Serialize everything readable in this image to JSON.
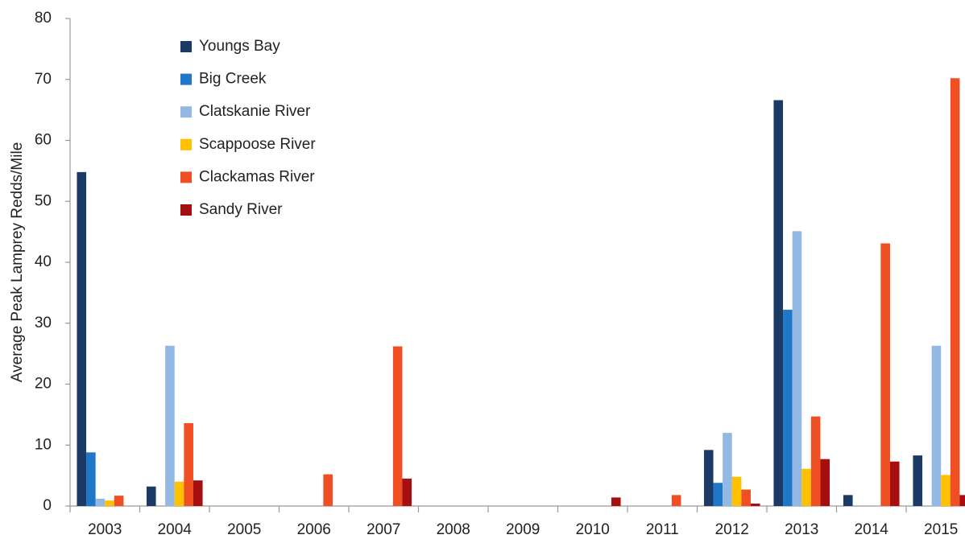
{
  "chart_data": {
    "type": "bar",
    "y_label": "Average Peak Lamprey Redds/Mile",
    "categories": [
      "2003",
      "2004",
      "2005",
      "2006",
      "2007",
      "2008",
      "2009",
      "2010",
      "2011",
      "2012",
      "2013",
      "2014",
      "2015"
    ],
    "series": [
      {
        "name": "Youngs Bay",
        "color": "#1b3a66",
        "values": [
          54.8,
          3.2,
          0,
          0,
          0,
          0,
          0,
          0,
          0,
          9.2,
          66.6,
          1.8,
          8.3
        ]
      },
      {
        "name": "Big Creek",
        "color": "#1f77c8",
        "values": [
          8.8,
          0,
          0,
          0,
          0,
          0,
          0,
          0,
          0,
          3.8,
          32.2,
          0,
          0
        ]
      },
      {
        "name": "Clatskanie River",
        "color": "#94b8e4",
        "values": [
          1.2,
          26.3,
          0,
          0,
          0,
          0,
          0,
          0,
          0,
          12,
          45.1,
          0,
          26.3
        ]
      },
      {
        "name": "Scappoose River",
        "color": "#ffc000",
        "values": [
          0.9,
          4,
          0,
          0,
          0,
          0,
          0,
          0,
          0,
          4.8,
          6.1,
          0,
          5.1
        ]
      },
      {
        "name": "Clackamas River",
        "color": "#f04e23",
        "values": [
          1.7,
          13.6,
          0,
          5.2,
          26.2,
          0,
          0,
          0,
          1.8,
          2.7,
          14.7,
          43.1,
          70.2
        ]
      },
      {
        "name": "Sandy River",
        "color": "#a50f0f",
        "values": [
          0,
          4.2,
          0,
          0,
          4.5,
          0,
          0,
          1.4,
          0,
          0.4,
          7.7,
          7.3,
          1.8
        ]
      }
    ],
    "ylim": [
      0,
      80
    ],
    "yticks": [
      0,
      10,
      20,
      30,
      40,
      50,
      60,
      70,
      80
    ],
    "grid": false,
    "legend": "upper-left"
  }
}
